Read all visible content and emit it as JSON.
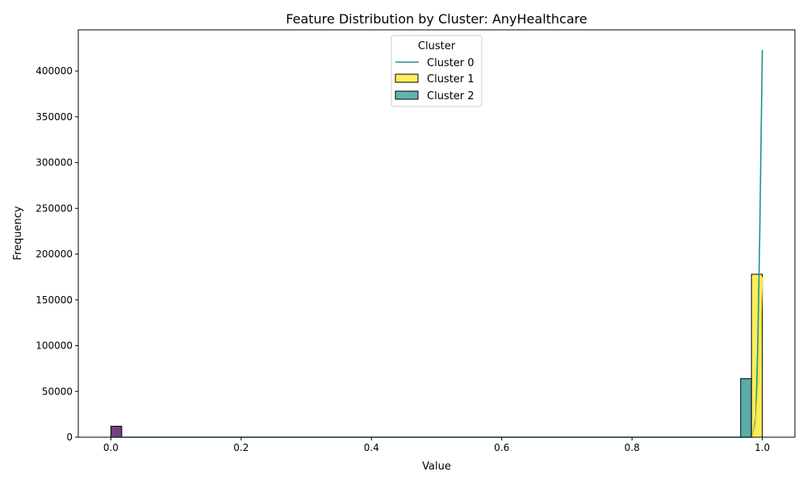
{
  "chart_data": {
    "type": "bar",
    "title": "Feature Distribution by Cluster: AnyHealthcare",
    "xlabel": "Value",
    "ylabel": "Frequency",
    "xlim": [
      -0.05,
      1.05
    ],
    "ylim": [
      0,
      445000
    ],
    "x_ticks": [
      0.0,
      0.2,
      0.4,
      0.6,
      0.8,
      1.0
    ],
    "x_tick_labels": [
      "0.0",
      "0.2",
      "0.4",
      "0.6",
      "0.8",
      "1.0"
    ],
    "y_ticks": [
      0,
      50000,
      100000,
      150000,
      200000,
      250000,
      300000,
      350000,
      400000
    ],
    "y_tick_labels": [
      "0",
      "50000",
      "100000",
      "150000",
      "200000",
      "250000",
      "300000",
      "350000",
      "400000"
    ],
    "legend": {
      "title": "Cluster",
      "placement": "top-center",
      "entries": [
        {
          "label": "Cluster 0",
          "kind": "line",
          "color": "#21918c"
        },
        {
          "label": "Cluster 1",
          "kind": "bar",
          "color": "#fde725"
        },
        {
          "label": "Cluster 2",
          "kind": "bar",
          "color": "#21918c"
        }
      ]
    },
    "bars": [
      {
        "x0": 0.0,
        "x1": 0.0167,
        "value": 12000,
        "color": "#440154"
      },
      {
        "x0": 0.9667,
        "x1": 0.9833,
        "value": 64000,
        "color": "#21918c"
      },
      {
        "x0": 0.9833,
        "x1": 1.0,
        "value": 178000,
        "color": "#fde725"
      }
    ],
    "series": [
      {
        "name": "Cluster 0",
        "color": "#21918c",
        "x": [
          0.0,
          0.96,
          0.985,
          0.99,
          0.993,
          0.996,
          1.0
        ],
        "y": [
          0,
          0,
          0,
          20000,
          100000,
          220000,
          423000
        ]
      },
      {
        "name": "Cluster 1",
        "color": "#fde725",
        "x": [
          0.985,
          0.99,
          0.994,
          0.997,
          1.0
        ],
        "y": [
          0,
          15000,
          60000,
          110000,
          175000
        ]
      }
    ]
  }
}
